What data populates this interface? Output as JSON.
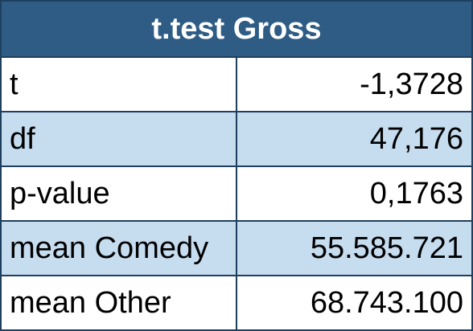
{
  "table": {
    "title": "t.test Gross",
    "rows": [
      {
        "label": "t",
        "value": "-1,3728"
      },
      {
        "label": "df",
        "value": "47,176"
      },
      {
        "label": "p-value",
        "value": "0,1763"
      },
      {
        "label": "mean Comedy",
        "value": "55.585.721"
      },
      {
        "label": "mean Other",
        "value": "68.743.100"
      }
    ],
    "colors": {
      "header_bg": "#2e5c85",
      "header_text": "#ffffff",
      "alt_row_bg": "#c6dcef",
      "plain_row_bg": "#ffffff",
      "border": "#1f3f5e"
    }
  }
}
